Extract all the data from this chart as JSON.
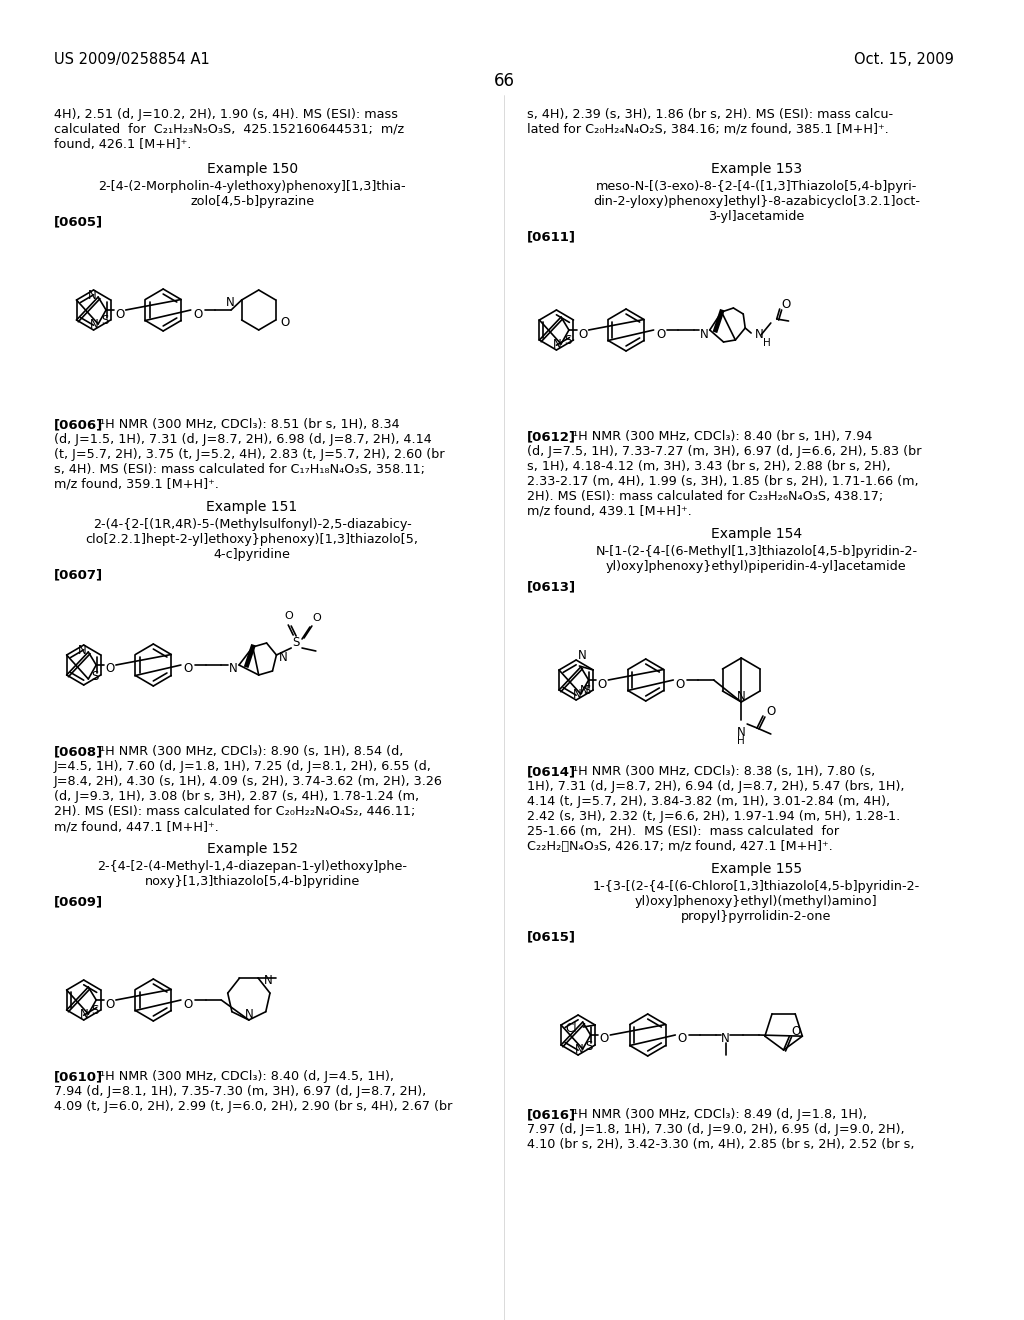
{
  "bg": "#ffffff",
  "header_left": "US 2009/0258854 A1",
  "header_right": "Oct. 15, 2009",
  "page_num": "66"
}
